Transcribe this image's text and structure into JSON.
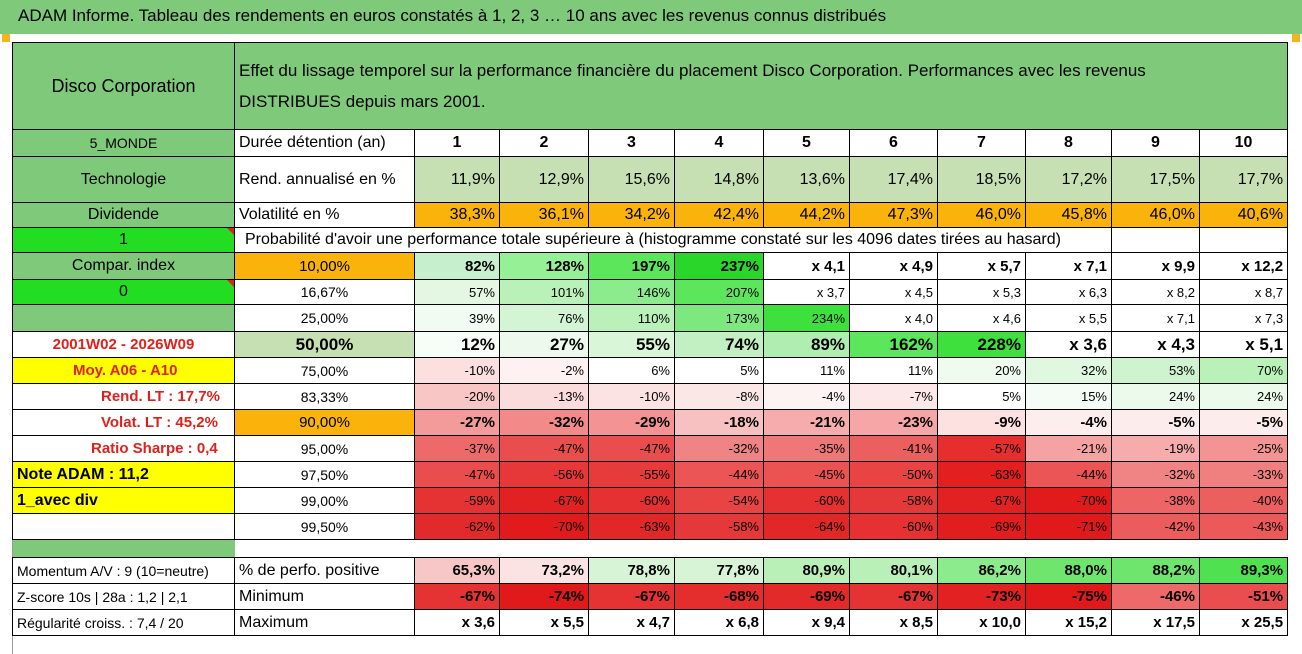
{
  "title": "ADAM Informe. Tableau des rendements en euros constatés à 1, 2, 3 … 10 ans avec les revenus connus distribués",
  "header": {
    "company": "Disco Corporation",
    "description_line1": "Effet du lissage temporel sur la performance financière du placement Disco Corporation. Performances avec les revenus",
    "description_line2": "DISTRIBUES depuis mars 2001."
  },
  "left": {
    "zone": "5_MONDE",
    "sector": "Technologie",
    "dividend_label": "Dividende",
    "flag1": "1",
    "compar_index": "Compar. index",
    "flag0": "0",
    "period": "2001W02 - 2026W09",
    "moy": "Moy. A06 - A10",
    "rend_lt": "Rend. LT :    17,7%",
    "volat_lt": "Volat. LT :    45,2%",
    "sharpe": "Ratio Sharpe :    0,4",
    "note": "Note ADAM : 11,2",
    "div_mode": "1_avec div"
  },
  "labels": {
    "duration": "Durée détention (an)",
    "rend": "Rend. annualisé en %",
    "volat": "Volatilité en %",
    "proba": "Probabilité d'avoir une performance totale supérieure à (histogramme constaté sur les 4096 dates tirées au hasard)"
  },
  "years": [
    "1",
    "2",
    "3",
    "4",
    "5",
    "6",
    "7",
    "8",
    "9",
    "10"
  ],
  "rend": [
    "11,9%",
    "12,9%",
    "15,6%",
    "14,8%",
    "13,6%",
    "17,4%",
    "18,5%",
    "17,2%",
    "17,5%",
    "17,7%"
  ],
  "volat": [
    "38,3%",
    "36,1%",
    "34,2%",
    "42,4%",
    "44,2%",
    "47,3%",
    "46,0%",
    "45,8%",
    "46,0%",
    "40,6%"
  ],
  "percentiles": [
    {
      "p": "10,00%",
      "vals": [
        "82%",
        "128%",
        "197%",
        "237%",
        "x 4,1",
        "x 4,9",
        "x 5,7",
        "x 7,1",
        "x 9,9",
        "x 12,2"
      ]
    },
    {
      "p": "16,67%",
      "vals": [
        "57%",
        "101%",
        "146%",
        "207%",
        "x 3,7",
        "x 4,5",
        "x 5,3",
        "x 6,3",
        "x 8,2",
        "x 8,7"
      ]
    },
    {
      "p": "25,00%",
      "vals": [
        "39%",
        "76%",
        "110%",
        "173%",
        "234%",
        "x 4,0",
        "x 4,6",
        "x 5,5",
        "x 7,1",
        "x 7,3"
      ]
    },
    {
      "p": "50,00%",
      "vals": [
        "12%",
        "27%",
        "55%",
        "74%",
        "89%",
        "162%",
        "228%",
        "x 3,6",
        "x 4,3",
        "x 5,1"
      ]
    },
    {
      "p": "75,00%",
      "vals": [
        "-10%",
        "-2%",
        "6%",
        "5%",
        "11%",
        "11%",
        "20%",
        "32%",
        "53%",
        "70%"
      ]
    },
    {
      "p": "83,33%",
      "vals": [
        "-20%",
        "-13%",
        "-10%",
        "-8%",
        "-4%",
        "-7%",
        "5%",
        "15%",
        "24%",
        "24%"
      ]
    },
    {
      "p": "90,00%",
      "vals": [
        "-27%",
        "-32%",
        "-29%",
        "-18%",
        "-21%",
        "-23%",
        "-9%",
        "-4%",
        "-5%",
        "-5%"
      ]
    },
    {
      "p": "95,00%",
      "vals": [
        "-37%",
        "-47%",
        "-47%",
        "-32%",
        "-35%",
        "-41%",
        "-57%",
        "-21%",
        "-19%",
        "-25%"
      ]
    },
    {
      "p": "97,50%",
      "vals": [
        "-47%",
        "-56%",
        "-55%",
        "-44%",
        "-45%",
        "-50%",
        "-63%",
        "-44%",
        "-32%",
        "-33%"
      ]
    },
    {
      "p": "99,00%",
      "vals": [
        "-59%",
        "-67%",
        "-60%",
        "-54%",
        "-60%",
        "-58%",
        "-67%",
        "-70%",
        "-38%",
        "-40%"
      ]
    },
    {
      "p": "99,50%",
      "vals": [
        "-62%",
        "-70%",
        "-63%",
        "-58%",
        "-64%",
        "-60%",
        "-69%",
        "-71%",
        "-42%",
        "-43%"
      ]
    }
  ],
  "bottom": {
    "momentum": "Momentum A/V : 9 (10=neutre)",
    "zscore": "Z-score 10s | 28a : 1,2 | 2,1",
    "regularite": "Régularité croiss. : 7,4 / 20",
    "pos_label": "% de perfo. positive",
    "min_label": "Minimum",
    "max_label": "Maximum",
    "pos": [
      "65,3%",
      "73,2%",
      "78,8%",
      "77,8%",
      "80,9%",
      "80,1%",
      "86,2%",
      "88,0%",
      "88,2%",
      "89,3%"
    ],
    "min": [
      "-67%",
      "-74%",
      "-67%",
      "-68%",
      "-69%",
      "-67%",
      "-73%",
      "-75%",
      "-46%",
      "-51%"
    ],
    "max": [
      "x 3,6",
      "x 5,5",
      "x 4,7",
      "x 6,8",
      "x 9,4",
      "x 8,5",
      "x 10,0",
      "x 15,2",
      "x 17,5",
      "x 25,5"
    ]
  },
  "colors": {
    "percentile_bg": [
      [
        "#c6efce",
        "#96f096",
        "#5ce65c",
        "#2bd62b",
        "#ffffff",
        "#ffffff",
        "#ffffff",
        "#ffffff",
        "#ffffff",
        "#ffffff"
      ],
      [
        "#e3f7e3",
        "#b9f1b9",
        "#8ceb8c",
        "#5ce65c",
        "#ffffff",
        "#ffffff",
        "#ffffff",
        "#ffffff",
        "#ffffff",
        "#ffffff"
      ],
      [
        "#f1fbf1",
        "#d3f5d3",
        "#b9f1b9",
        "#7de87d",
        "#3ee03e",
        "#ffffff",
        "#ffffff",
        "#ffffff",
        "#ffffff",
        "#ffffff"
      ],
      [
        "#f7fdf7",
        "#eef9ee",
        "#d9f6d9",
        "#c2f0c2",
        "#b0edb0",
        "#5ce65c",
        "#3ee03e",
        "#ffffff",
        "#ffffff",
        "#ffffff"
      ],
      [
        "#fce0e0",
        "#fdf1f1",
        "#ffffff",
        "#ffffff",
        "#ffffff",
        "#ffffff",
        "#f0fbf0",
        "#e0f7e0",
        "#cff3cf",
        "#b9f1b9"
      ],
      [
        "#f9c6c6",
        "#fbdcdc",
        "#fce3e3",
        "#fce7e7",
        "#fdf3f3",
        "#fce8e8",
        "#ffffff",
        "#f5fcf5",
        "#ecfaec",
        "#ecfaec"
      ],
      [
        "#f39a9a",
        "#f28a8a",
        "#f39393",
        "#f8c1c1",
        "#f6acac",
        "#f6a6a6",
        "#fde0e0",
        "#fdeeee",
        "#fdecec",
        "#fdecec"
      ],
      [
        "#ee6a6a",
        "#ea4d4d",
        "#ea4d4d",
        "#f08484",
        "#ef7777",
        "#ec5f5f",
        "#e62e2e",
        "#f5a2a2",
        "#f6acac",
        "#f39393"
      ],
      [
        "#ea4d4d",
        "#e63838",
        "#e63b3b",
        "#eb5555",
        "#eb5252",
        "#e84444",
        "#e22020",
        "#eb5555",
        "#f08484",
        "#f08080"
      ],
      [
        "#e53333",
        "#e22222",
        "#e53131",
        "#e84444",
        "#e53131",
        "#e53838",
        "#e22222",
        "#e11b1b",
        "#ed6565",
        "#ec5f5f"
      ],
      [
        "#e32a2a",
        "#e11b1b",
        "#e22727",
        "#e53838",
        "#e22727",
        "#e53131",
        "#e11d1d",
        "#e01a1a",
        "#ec5c5c",
        "#ec5959"
      ]
    ],
    "pos_bg": [
      "#f7c6c6",
      "#fbe3e3",
      "#d7f4d7",
      "#d7f4d7",
      "#b8f0b8",
      "#b8f0b8",
      "#8ceb8c",
      "#6ee66e",
      "#6ee66e",
      "#4fe14f"
    ],
    "min_bg": [
      "#e53333",
      "#e01a1a",
      "#e53333",
      "#e42e2e",
      "#e32a2a",
      "#e53333",
      "#e22222",
      "#e01a1a",
      "#ee6a6a",
      "#ea4d4d"
    ]
  }
}
